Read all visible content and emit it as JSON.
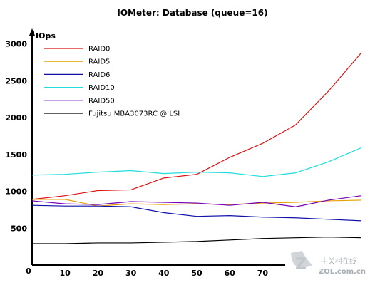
{
  "chart_data": {
    "type": "line",
    "title": "IOMeter: Database (queue=16)",
    "ylabel": "IOps",
    "xlabel": "",
    "x": [
      0,
      10,
      20,
      30,
      40,
      50,
      60,
      70,
      80,
      90,
      100
    ],
    "x_ticks": [
      0,
      10,
      20,
      30,
      40,
      50,
      60,
      70
    ],
    "y_ticks": [
      500,
      1000,
      1500,
      2000,
      2500,
      3000
    ],
    "origin_label": "0",
    "xlim": [
      0,
      100
    ],
    "ylim": [
      0,
      3000
    ],
    "grid": false,
    "legend_position": "top-left",
    "series": [
      {
        "name": "RAID0",
        "color": "#dd1111",
        "values": [
          890,
          940,
          1010,
          1020,
          1180,
          1230,
          1460,
          1650,
          1900,
          2360,
          2880
        ]
      },
      {
        "name": "RAID5",
        "color": "#e8a000",
        "values": [
          890,
          890,
          800,
          830,
          820,
          830,
          820,
          840,
          850,
          870,
          880
        ]
      },
      {
        "name": "RAID6",
        "color": "#1111aa",
        "values": [
          810,
          800,
          800,
          790,
          710,
          660,
          670,
          650,
          640,
          620,
          600
        ]
      },
      {
        "name": "RAID10",
        "color": "#22dddd",
        "values": [
          1220,
          1230,
          1260,
          1280,
          1240,
          1260,
          1250,
          1200,
          1250,
          1400,
          1590
        ]
      },
      {
        "name": "RAID50",
        "color": "#7700bb",
        "values": [
          870,
          830,
          820,
          860,
          850,
          840,
          810,
          850,
          790,
          880,
          940
        ]
      },
      {
        "name": "Fujitsu MBA3073RC @ LSI",
        "color": "#000000",
        "values": [
          290,
          290,
          300,
          300,
          310,
          320,
          340,
          360,
          370,
          380,
          370
        ]
      }
    ]
  },
  "watermark": {
    "logo_glyph": "Z",
    "cn_text": "中关村在线",
    "site_text": "ZOL.com.cn"
  }
}
